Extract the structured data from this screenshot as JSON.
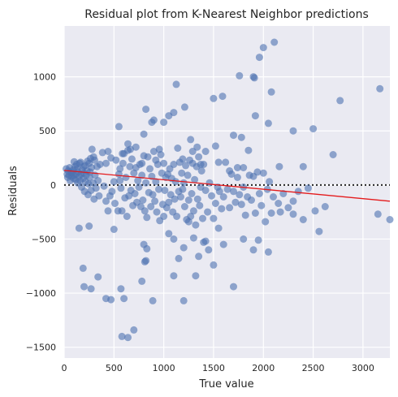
{
  "chart_data": {
    "type": "scatter",
    "title": "Residual plot from K-Nearest Neighbor predictions",
    "xlabel": "True value",
    "ylabel": "Residuals",
    "xlim": [
      0,
      3270
    ],
    "ylim": [
      -1600,
      1470
    ],
    "xticks": [
      0,
      500,
      1000,
      1500,
      2000,
      2500,
      3000
    ],
    "yticks": [
      -1500,
      -1000,
      -500,
      0,
      500,
      1000
    ],
    "xtick_labels": [
      "0",
      "500",
      "1000",
      "1500",
      "2000",
      "2500",
      "3000"
    ],
    "ytick_labels": [
      "−1500",
      "−1000",
      "−500",
      "0",
      "500",
      "1000"
    ],
    "grid": true,
    "reference_line": {
      "y": 0,
      "style": "dotted",
      "color": "#262626"
    },
    "trend_line": {
      "x": [
        0,
        3270
      ],
      "y": [
        135,
        -150
      ],
      "color": "#e41a1c"
    },
    "point_color": "#4c72b0",
    "points": [
      [
        20,
        150
      ],
      [
        30,
        100
      ],
      [
        35,
        70
      ],
      [
        40,
        130
      ],
      [
        50,
        90
      ],
      [
        55,
        160
      ],
      [
        60,
        40
      ],
      [
        70,
        120
      ],
      [
        75,
        80
      ],
      [
        80,
        110
      ],
      [
        90,
        140
      ],
      [
        95,
        60
      ],
      [
        100,
        90
      ],
      [
        110,
        170
      ],
      [
        115,
        50
      ],
      [
        120,
        100
      ],
      [
        130,
        150
      ],
      [
        135,
        20
      ],
      [
        140,
        120
      ],
      [
        150,
        80
      ],
      [
        155,
        200
      ],
      [
        160,
        40
      ],
      [
        170,
        100
      ],
      [
        175,
        -20
      ],
      [
        180,
        140
      ],
      [
        190,
        60
      ],
      [
        195,
        170
      ],
      [
        200,
        110
      ],
      [
        205,
        -60
      ],
      [
        210,
        180
      ],
      [
        215,
        30
      ],
      [
        220,
        90
      ],
      [
        230,
        130
      ],
      [
        240,
        -90
      ],
      [
        245,
        10
      ],
      [
        250,
        200
      ],
      [
        255,
        70
      ],
      [
        260,
        120
      ],
      [
        270,
        -50
      ],
      [
        275,
        160
      ],
      [
        280,
        330
      ],
      [
        290,
        20
      ],
      [
        300,
        -130
      ],
      [
        305,
        230
      ],
      [
        310,
        90
      ],
      [
        320,
        -30
      ],
      [
        330,
        170
      ],
      [
        340,
        40
      ],
      [
        350,
        -100
      ],
      [
        360,
        190
      ],
      [
        100,
        215
      ],
      [
        125,
        190
      ],
      [
        165,
        210
      ],
      [
        235,
        220
      ],
      [
        265,
        245
      ],
      [
        295,
        260
      ],
      [
        385,
        300
      ],
      [
        420,
        200
      ],
      [
        440,
        310
      ],
      [
        470,
        250
      ],
      [
        480,
        -60
      ],
      [
        500,
        30
      ],
      [
        510,
        -170
      ],
      [
        520,
        230
      ],
      [
        540,
        -240
      ],
      [
        550,
        100
      ],
      [
        560,
        40
      ],
      [
        570,
        -30
      ],
      [
        580,
        -240
      ],
      [
        590,
        200
      ],
      [
        400,
        -10
      ],
      [
        420,
        -150
      ],
      [
        440,
        -240
      ],
      [
        460,
        -100
      ],
      [
        600,
        290
      ],
      [
        610,
        -120
      ],
      [
        620,
        70
      ],
      [
        630,
        -290
      ],
      [
        640,
        320
      ],
      [
        650,
        -100
      ],
      [
        660,
        170
      ],
      [
        670,
        -50
      ],
      [
        680,
        240
      ],
      [
        690,
        -190
      ],
      [
        700,
        110
      ],
      [
        710,
        -80
      ],
      [
        720,
        160
      ],
      [
        730,
        -160
      ],
      [
        740,
        40
      ],
      [
        750,
        -20
      ],
      [
        760,
        190
      ],
      [
        770,
        -200
      ],
      [
        780,
        90
      ],
      [
        790,
        -140
      ],
      [
        800,
        270
      ],
      [
        810,
        -240
      ],
      [
        820,
        20
      ],
      [
        830,
        -300
      ],
      [
        840,
        260
      ],
      [
        850,
        -70
      ],
      [
        860,
        150
      ],
      [
        870,
        -200
      ],
      [
        880,
        80
      ],
      [
        890,
        -90
      ],
      [
        900,
        310
      ],
      [
        910,
        -150
      ],
      [
        920,
        30
      ],
      [
        930,
        -250
      ],
      [
        940,
        190
      ],
      [
        950,
        -40
      ],
      [
        960,
        -330
      ],
      [
        970,
        280
      ],
      [
        980,
        110
      ],
      [
        990,
        -180
      ],
      [
        1000,
        200
      ],
      [
        1010,
        -50
      ],
      [
        1020,
        70
      ],
      [
        1030,
        -210
      ],
      [
        1040,
        100
      ],
      [
        1050,
        -160
      ],
      [
        1060,
        150
      ],
      [
        1070,
        -90
      ],
      [
        1080,
        60
      ],
      [
        1090,
        -250
      ],
      [
        1100,
        190
      ],
      [
        1110,
        -130
      ],
      [
        1120,
        30
      ],
      [
        1130,
        -290
      ],
      [
        1140,
        340
      ],
      [
        1150,
        -60
      ],
      [
        1160,
        210
      ],
      [
        1170,
        -110
      ],
      [
        1180,
        110
      ],
      [
        1190,
        -40
      ],
      [
        1200,
        20
      ],
      [
        1210,
        -200
      ],
      [
        1220,
        180
      ],
      [
        1230,
        -320
      ],
      [
        1240,
        90
      ],
      [
        1250,
        -140
      ],
      [
        1260,
        230
      ],
      [
        1270,
        -290
      ],
      [
        1280,
        -80
      ],
      [
        1290,
        310
      ],
      [
        1300,
        -240
      ],
      [
        1310,
        50
      ],
      [
        1320,
        -370
      ],
      [
        1330,
        170
      ],
      [
        1340,
        -130
      ],
      [
        1350,
        260
      ],
      [
        1360,
        -190
      ],
      [
        1370,
        -20
      ],
      [
        1380,
        130
      ],
      [
        1390,
        -310
      ],
      [
        1400,
        190
      ],
      [
        1420,
        -50
      ],
      [
        1440,
        -250
      ],
      [
        1460,
        20
      ],
      [
        1480,
        -100
      ],
      [
        1500,
        -310
      ],
      [
        1520,
        -170
      ],
      [
        1540,
        -20
      ],
      [
        1560,
        -60
      ],
      [
        1580,
        -220
      ],
      [
        1600,
        -110
      ],
      [
        1620,
        210
      ],
      [
        1640,
        -40
      ],
      [
        1660,
        -210
      ],
      [
        1680,
        100
      ],
      [
        1700,
        -60
      ],
      [
        1720,
        -160
      ],
      [
        1740,
        70
      ],
      [
        1760,
        -90
      ],
      [
        1780,
        -180
      ],
      [
        1800,
        -20
      ],
      [
        1820,
        -280
      ],
      [
        1840,
        -110
      ],
      [
        1860,
        90
      ],
      [
        1880,
        -140
      ],
      [
        1900,
        80
      ],
      [
        1920,
        -260
      ],
      [
        1940,
        120
      ],
      [
        1960,
        -80
      ],
      [
        1980,
        -190
      ],
      [
        2000,
        110
      ],
      [
        2020,
        -340
      ],
      [
        2040,
        -40
      ],
      [
        2060,
        30
      ],
      [
        2080,
        -260
      ],
      [
        2100,
        -110
      ],
      [
        2150,
        -170
      ],
      [
        2200,
        -80
      ],
      [
        2250,
        -210
      ],
      [
        2300,
        -150
      ],
      [
        2350,
        -60
      ],
      [
        2400,
        -320
      ],
      [
        2450,
        -30
      ],
      [
        2520,
        -240
      ],
      [
        2560,
        -430
      ],
      [
        2620,
        -200
      ],
      [
        550,
        540
      ],
      [
        560,
        150
      ],
      [
        585,
        290
      ],
      [
        640,
        380
      ],
      [
        665,
        330
      ],
      [
        720,
        350
      ],
      [
        780,
        200
      ],
      [
        800,
        470
      ],
      [
        820,
        700
      ],
      [
        880,
        580
      ],
      [
        900,
        600
      ],
      [
        920,
        230
      ],
      [
        955,
        330
      ],
      [
        1000,
        580
      ],
      [
        1050,
        640
      ],
      [
        1100,
        670
      ],
      [
        1125,
        930
      ],
      [
        1190,
        240
      ],
      [
        1210,
        720
      ],
      [
        1270,
        420
      ],
      [
        1290,
        200
      ],
      [
        1335,
        350
      ],
      [
        1370,
        190
      ],
      [
        1420,
        310
      ],
      [
        1500,
        800
      ],
      [
        1520,
        360
      ],
      [
        1550,
        210
      ],
      [
        1590,
        820
      ],
      [
        1660,
        130
      ],
      [
        1700,
        460
      ],
      [
        1740,
        160
      ],
      [
        1760,
        1010
      ],
      [
        1780,
        440
      ],
      [
        1800,
        160
      ],
      [
        1850,
        320
      ],
      [
        1900,
        1000
      ],
      [
        1910,
        990
      ],
      [
        1920,
        640
      ],
      [
        1960,
        1180
      ],
      [
        2000,
        1270
      ],
      [
        2050,
        570
      ],
      [
        2080,
        860
      ],
      [
        2110,
        1320
      ],
      [
        2160,
        170
      ],
      [
        2300,
        500
      ],
      [
        2400,
        170
      ],
      [
        2500,
        520
      ],
      [
        2700,
        280
      ],
      [
        2770,
        780
      ],
      [
        3170,
        890
      ],
      [
        1000,
        -290
      ],
      [
        1050,
        -450
      ],
      [
        1100,
        -500
      ],
      [
        1150,
        -680
      ],
      [
        1200,
        -580
      ],
      [
        1250,
        -340
      ],
      [
        1300,
        -490
      ],
      [
        1350,
        -660
      ],
      [
        1400,
        -530
      ],
      [
        1450,
        -600
      ],
      [
        1500,
        -740
      ],
      [
        1550,
        -400
      ],
      [
        1600,
        -550
      ],
      [
        1700,
        -940
      ],
      [
        1800,
        -500
      ],
      [
        1900,
        -600
      ],
      [
        1950,
        -510
      ],
      [
        2050,
        -620
      ],
      [
        2170,
        -250
      ],
      [
        2300,
        -270
      ],
      [
        3150,
        -270
      ],
      [
        3270,
        -320
      ],
      [
        150,
        -400
      ],
      [
        190,
        -770
      ],
      [
        200,
        -940
      ],
      [
        250,
        -380
      ],
      [
        270,
        -960
      ],
      [
        340,
        -850
      ],
      [
        420,
        -1050
      ],
      [
        470,
        -1060
      ],
      [
        500,
        -410
      ],
      [
        570,
        -960
      ],
      [
        580,
        -1400
      ],
      [
        600,
        -1050
      ],
      [
        640,
        -1410
      ],
      [
        700,
        -1340
      ],
      [
        780,
        -890
      ],
      [
        800,
        -550
      ],
      [
        810,
        -710
      ],
      [
        820,
        -700
      ],
      [
        830,
        -590
      ],
      [
        890,
        -1070
      ],
      [
        1100,
        -840
      ],
      [
        1200,
        -1070
      ],
      [
        1320,
        -840
      ],
      [
        1420,
        -520
      ]
    ]
  }
}
